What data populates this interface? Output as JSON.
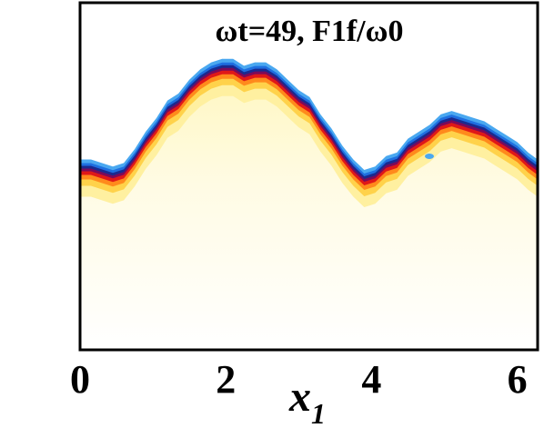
{
  "chart_data": {
    "type": "heatmap",
    "title": "ωt=49, F1f/ω0",
    "xlabel": "x",
    "xlabel_subscript": "1",
    "ylabel": "",
    "xlim": [
      0,
      6.28
    ],
    "x_ticks": [
      0,
      2,
      4,
      6
    ],
    "x_tick_labels": [
      "0",
      "2",
      "4",
      "6"
    ],
    "y_ticks": [],
    "grid": false,
    "legend": "none",
    "colormap": [
      "#ffffff",
      "#fffde0",
      "#fff0a0",
      "#ffd24a",
      "#ff8a1c",
      "#e01818",
      "#7a0a5a",
      "#1a2a8f",
      "#1e6fe0",
      "#4aa8f0",
      "#ffffff"
    ],
    "interface_profile": {
      "description": "front height vs x1 (normalized to box height, 0 = bottom, 1 = top)",
      "x": [
        0.0,
        0.15,
        0.3,
        0.45,
        0.6,
        0.75,
        0.9,
        1.05,
        1.2,
        1.35,
        1.5,
        1.65,
        1.8,
        1.95,
        2.1,
        2.25,
        2.4,
        2.55,
        2.7,
        2.85,
        3.0,
        3.15,
        3.3,
        3.45,
        3.6,
        3.75,
        3.9,
        4.05,
        4.2,
        4.35,
        4.5,
        4.65,
        4.8,
        4.95,
        5.1,
        5.25,
        5.4,
        5.55,
        5.7,
        5.85,
        6.0,
        6.15,
        6.28
      ],
      "y": [
        0.53,
        0.53,
        0.52,
        0.51,
        0.52,
        0.56,
        0.61,
        0.65,
        0.7,
        0.72,
        0.76,
        0.79,
        0.81,
        0.82,
        0.82,
        0.8,
        0.81,
        0.81,
        0.79,
        0.76,
        0.73,
        0.71,
        0.66,
        0.62,
        0.57,
        0.53,
        0.5,
        0.51,
        0.54,
        0.55,
        0.59,
        0.61,
        0.63,
        0.66,
        0.67,
        0.66,
        0.65,
        0.64,
        0.62,
        0.6,
        0.58,
        0.55,
        0.53
      ]
    }
  }
}
